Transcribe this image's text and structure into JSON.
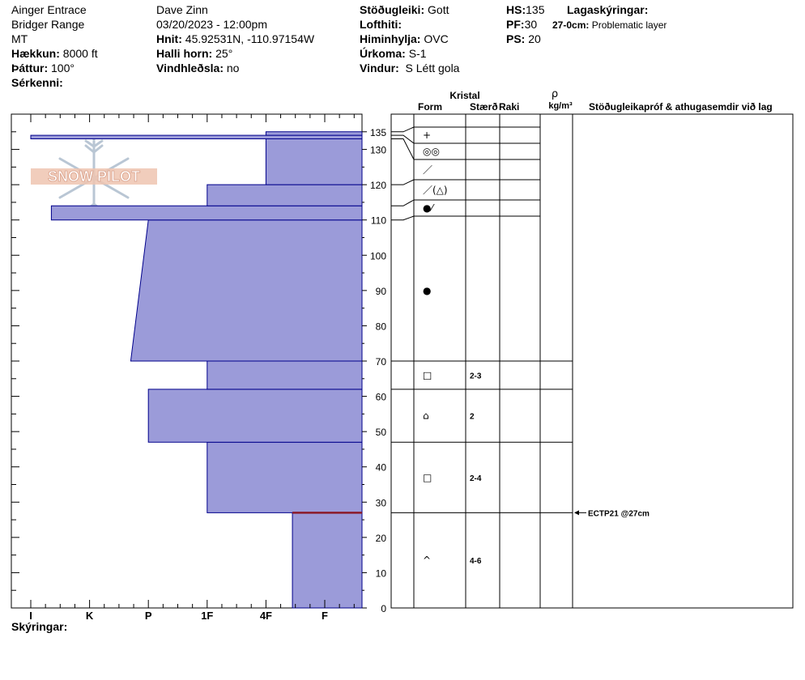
{
  "header": {
    "location": "Ainger Entrace",
    "range": "Bridger Range",
    "state": "MT",
    "elevation_label": "Hækkun:",
    "elevation": "8000 ft",
    "aspect_label": "Þáttur:",
    "aspect": "100°",
    "features_label": "Sérkenni:",
    "observer": "Dave Zinn",
    "datetime": "03/20/2023 - 12:00pm",
    "coords_label": "Hnit:",
    "coords": "45.92531N, -110.97154W",
    "slope_label": "Halli horn:",
    "slope": "25°",
    "wind_loading_label": "Vindhleðsla:",
    "wind_loading": "no",
    "stability_label": "Stöðugleiki:",
    "stability": "Gott",
    "air_temp_label": "Lofthiti:",
    "sky_label": "Himinhylja:",
    "sky": "OVC",
    "precip_label": "Úrkoma:",
    "precip": "S-1",
    "wind_label": "Vindur:",
    "wind": "S Létt gola",
    "hs_label": "HS:",
    "hs": "135",
    "pf_label": "PF:",
    "pf": "30",
    "ps_label": "PS:",
    "ps": "20",
    "layer_notes_label": "Lagaskýringar:",
    "layer_note_depth": "27-0cm:",
    "layer_note_text": "Problematic layer",
    "notes_label": "Skýringar:"
  },
  "logo": {
    "text": "SNOW PILOT"
  },
  "table_headers": {
    "crystal": "Kristal",
    "form": "Form",
    "size": "Stærð",
    "moisture": "Raki",
    "rho": "ρ",
    "density_unit": "kg/m³",
    "tests": "Stöðugleikapróf & athugasemdir við lag"
  },
  "colors": {
    "layer_fill": "#9b9bd9",
    "layer_stroke": "#00008b",
    "weak_layer": "#8b1a2a"
  },
  "chart_data": {
    "type": "snow_profile_hardness",
    "ylim": [
      0,
      140
    ],
    "hardness_categories": [
      "I",
      "K",
      "P",
      "1F",
      "4F",
      "F"
    ],
    "y_ticks": [
      0,
      10,
      20,
      30,
      40,
      50,
      60,
      70,
      80,
      90,
      100,
      110,
      120,
      130,
      135
    ],
    "layers": [
      {
        "bottom": 0,
        "top": 27,
        "hardness_bottom": 5.45,
        "hardness_top": 5.45,
        "form": "^",
        "size": "4-6"
      },
      {
        "bottom": 27,
        "top": 47,
        "hardness_bottom": 4.0,
        "hardness_top": 4.0,
        "form": "□",
        "size": "2-4"
      },
      {
        "bottom": 47,
        "top": 62,
        "hardness_bottom": 3.0,
        "hardness_top": 3.0,
        "form": "⌂",
        "size": "2"
      },
      {
        "bottom": 62,
        "top": 70,
        "hardness_bottom": 4.0,
        "hardness_top": 4.0,
        "form": "□",
        "size": "2-3"
      },
      {
        "bottom": 70,
        "top": 110,
        "hardness_bottom": 2.7,
        "hardness_top": 3.0,
        "form": "●",
        "size": ""
      },
      {
        "bottom": 110,
        "top": 114,
        "hardness_bottom": 1.35,
        "hardness_top": 1.35,
        "form": "●⁄",
        "size": ""
      },
      {
        "bottom": 114,
        "top": 120,
        "hardness_bottom": 4.0,
        "hardness_top": 4.0,
        "form": "／(△)",
        "size": ""
      },
      {
        "bottom": 120,
        "top": 133,
        "hardness_bottom": 5.0,
        "hardness_top": 5.0,
        "form": "／",
        "size": ""
      },
      {
        "bottom": 133,
        "top": 134,
        "hardness_bottom": 1.0,
        "hardness_top": 1.0,
        "form": "◎◎",
        "size": ""
      },
      {
        "bottom": 134,
        "top": 135,
        "hardness_bottom": 5.0,
        "hardness_top": 5.0,
        "form": "+",
        "size": ""
      }
    ],
    "weak_layer_depth": 27,
    "stability_tests": [
      {
        "depth": 27,
        "result": "ECTP21 @27cm"
      }
    ]
  }
}
